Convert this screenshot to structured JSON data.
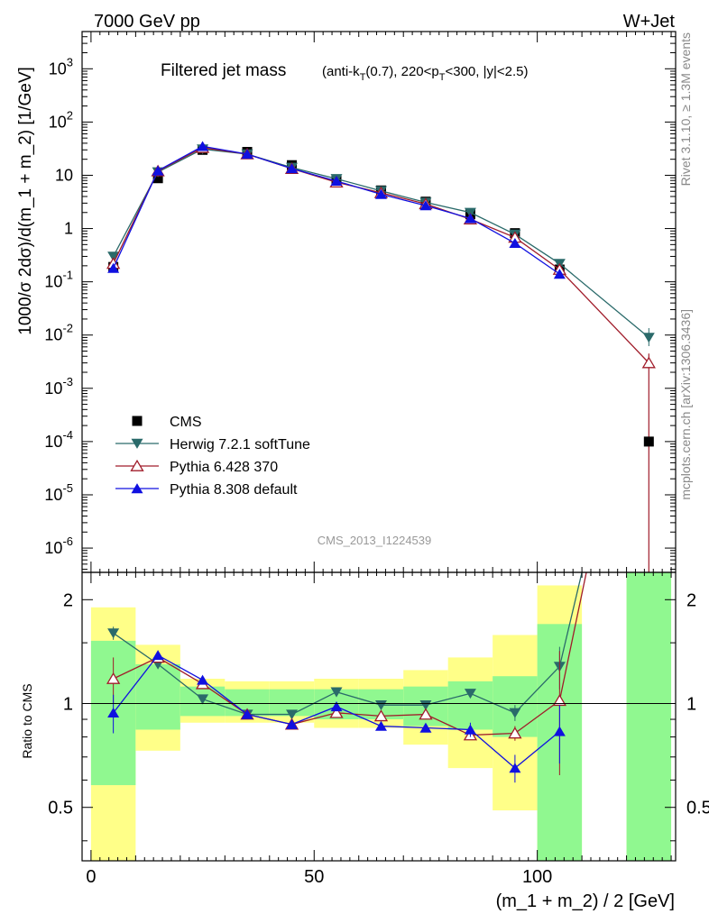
{
  "header": {
    "left": "7000 GeV pp",
    "right": "W+Jet"
  },
  "side_labels": {
    "rivet": "Rivet 3.1.10, ≥ 1.3M events",
    "mcplots": "mcplots.cern.ch [arXiv:1306.3436]"
  },
  "chart_data": [
    {
      "type": "line",
      "title": "Filtered jet mass",
      "subtitle": "(anti-k_T(0.7), 220<p_T<300, |y|<2.5)",
      "ylabel": "1000/σ 2dσ)/d(m_1 + m_2) [1/GeV]",
      "xlabel": "(m_1 + m_2) / 2 [GeV]",
      "watermark": "CMS_2013_I1224539",
      "yscale": "log",
      "xlim": [
        -2,
        131
      ],
      "ylim": [
        3.5e-07,
        5000
      ],
      "x_ticks": [
        0,
        50,
        100
      ],
      "y_tick_labels": [
        "10^-6",
        "10^-5",
        "10^-4",
        "10^-3",
        "10^-2",
        "10^-1",
        "1",
        "10",
        "10^2",
        "10^3"
      ],
      "legend_position": "bottom-left",
      "x": [
        5,
        15,
        25,
        35,
        45,
        55,
        65,
        75,
        85,
        95,
        105,
        125
      ],
      "series": [
        {
          "name": "CMS",
          "color": "#000000",
          "marker": "square",
          "values": [
            0.19,
            8.8,
            30,
            27.5,
            15.5,
            8.1,
            5.2,
            3.2,
            1.85,
            0.82,
            0.17,
            0.0001
          ]
        },
        {
          "name": "Herwig 7.2.1 softTune",
          "color": "#2a6a6a",
          "marker": "triangle-down",
          "values": [
            0.3,
            11.5,
            31,
            25,
            14,
            8.6,
            5.1,
            3.1,
            2.0,
            0.78,
            0.22,
            0.009
          ]
        },
        {
          "name": "Pythia 6.428 370",
          "color": "#a01c2a",
          "marker": "triangle-up-open",
          "values": [
            0.22,
            12,
            33,
            25,
            13.3,
            7.4,
            4.7,
            2.9,
            1.5,
            0.68,
            0.17,
            0.003
          ]
        },
        {
          "name": "Pythia 8.308 default",
          "color": "#1010e0",
          "marker": "triangle-up",
          "values": [
            0.18,
            12.2,
            35,
            25,
            13.4,
            7.8,
            4.4,
            2.7,
            1.55,
            0.53,
            0.14,
            null
          ]
        }
      ]
    },
    {
      "type": "line",
      "ylabel": "Ratio to CMS",
      "xlabel": "(m_1 + m_2) / 2 [GeV]",
      "yscale": "log",
      "ylim": [
        0.35,
        2.4
      ],
      "xlim": [
        -2,
        131
      ],
      "y_tick_labels": [
        "0.5",
        "1",
        "2"
      ],
      "x": [
        5,
        15,
        25,
        35,
        45,
        55,
        65,
        75,
        85,
        95,
        105
      ],
      "bands": [
        {
          "x0": 0,
          "x1": 10,
          "green": [
            0.58,
            1.52
          ],
          "yellow": [
            0.3,
            1.9
          ]
        },
        {
          "x0": 10,
          "x1": 20,
          "green": [
            0.84,
            1.3
          ],
          "yellow": [
            0.73,
            1.48
          ]
        },
        {
          "x0": 20,
          "x1": 30,
          "green": [
            0.92,
            1.12
          ],
          "yellow": [
            0.88,
            1.18
          ]
        },
        {
          "x0": 30,
          "x1": 40,
          "green": [
            0.92,
            1.1
          ],
          "yellow": [
            0.88,
            1.16
          ]
        },
        {
          "x0": 40,
          "x1": 50,
          "green": [
            0.92,
            1.1
          ],
          "yellow": [
            0.88,
            1.16
          ]
        },
        {
          "x0": 50,
          "x1": 60,
          "green": [
            0.9,
            1.1
          ],
          "yellow": [
            0.85,
            1.18
          ]
        },
        {
          "x0": 60,
          "x1": 70,
          "green": [
            0.9,
            1.1
          ],
          "yellow": [
            0.85,
            1.18
          ]
        },
        {
          "x0": 70,
          "x1": 80,
          "green": [
            0.86,
            1.12
          ],
          "yellow": [
            0.76,
            1.25
          ]
        },
        {
          "x0": 80,
          "x1": 90,
          "green": [
            0.84,
            1.16
          ],
          "yellow": [
            0.65,
            1.36
          ]
        },
        {
          "x0": 90,
          "x1": 100,
          "green": [
            0.8,
            1.2
          ],
          "yellow": [
            0.49,
            1.58
          ]
        },
        {
          "x0": 100,
          "x1": 110,
          "green": [
            0.3,
            1.7
          ],
          "yellow": [
            0.3,
            2.2
          ]
        },
        {
          "x0": 120,
          "x1": 130,
          "green": [
            0.3,
            2.4
          ],
          "yellow": [
            0.3,
            2.4
          ]
        }
      ],
      "series": [
        {
          "name": "Herwig 7.2.1 softTune",
          "color": "#2a6a6a",
          "marker": "triangle-down",
          "values": [
            1.6,
            1.3,
            1.03,
            0.93,
            0.93,
            1.08,
            0.99,
            0.99,
            1.07,
            0.94,
            1.28
          ],
          "errors": [
            0.07,
            0.02,
            0.01,
            0.01,
            0.01,
            0.01,
            0.01,
            0.01,
            0.03,
            0.05,
            0.18
          ],
          "tail_end": [
            110,
            2.5
          ]
        },
        {
          "name": "Pythia 6.428 370",
          "color": "#a01c2a",
          "marker": "triangle-up-open",
          "values": [
            1.18,
            1.36,
            1.14,
            0.93,
            0.87,
            0.94,
            0.92,
            0.93,
            0.81,
            0.82,
            1.02
          ],
          "errors": [
            0.18,
            0.03,
            0.01,
            0.01,
            0.01,
            0.01,
            0.01,
            0.01,
            0.02,
            0.04,
            0.4
          ],
          "tail_end": [
            111,
            2.5
          ]
        },
        {
          "name": "Pythia 8.308 default",
          "color": "#1010e0",
          "marker": "triangle-up",
          "values": [
            0.94,
            1.38,
            1.17,
            0.93,
            0.87,
            0.98,
            0.86,
            0.85,
            0.84,
            0.65,
            0.83
          ],
          "errors": [
            0.12,
            0.02,
            0.01,
            0.01,
            0.01,
            0.01,
            0.01,
            0.02,
            0.04,
            0.06,
            0.16
          ]
        }
      ]
    }
  ]
}
